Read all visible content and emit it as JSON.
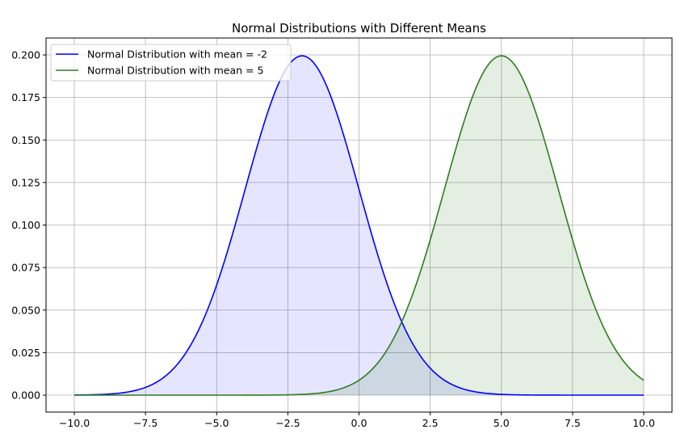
{
  "chart_data": {
    "type": "line",
    "title": "Normal Distributions with Different Means",
    "xlabel": "",
    "ylabel": "",
    "xlim": [
      -11,
      11
    ],
    "ylim": [
      -0.01,
      0.21
    ],
    "grid": true,
    "legend_position": "upper left",
    "x_ticks": [
      "−10.0",
      "−7.5",
      "−5.0",
      "−2.5",
      "0.0",
      "2.5",
      "5.0",
      "7.5",
      "10.0"
    ],
    "x_tick_values": [
      -10,
      -7.5,
      -5,
      -2.5,
      0,
      2.5,
      5,
      7.5,
      10
    ],
    "y_ticks": [
      "0.000",
      "0.025",
      "0.050",
      "0.075",
      "0.100",
      "0.125",
      "0.150",
      "0.175",
      "0.200"
    ],
    "y_tick_values": [
      0,
      0.025,
      0.05,
      0.075,
      0.1,
      0.125,
      0.15,
      0.175,
      0.2
    ],
    "x_range": [
      -10,
      10
    ],
    "series": [
      {
        "name": "Normal Distribution with mean = -2",
        "mean": -2,
        "std": 2,
        "color": "#0000ff",
        "fill": "#0000ff",
        "fill_alpha": 0.1,
        "peak": 0.1995
      },
      {
        "name": "Normal Distribution with mean = 5",
        "mean": 5,
        "std": 2,
        "color": "#2e7d1e",
        "fill": "#2e7d1e",
        "fill_alpha": 0.13,
        "peak": 0.1995
      }
    ]
  }
}
